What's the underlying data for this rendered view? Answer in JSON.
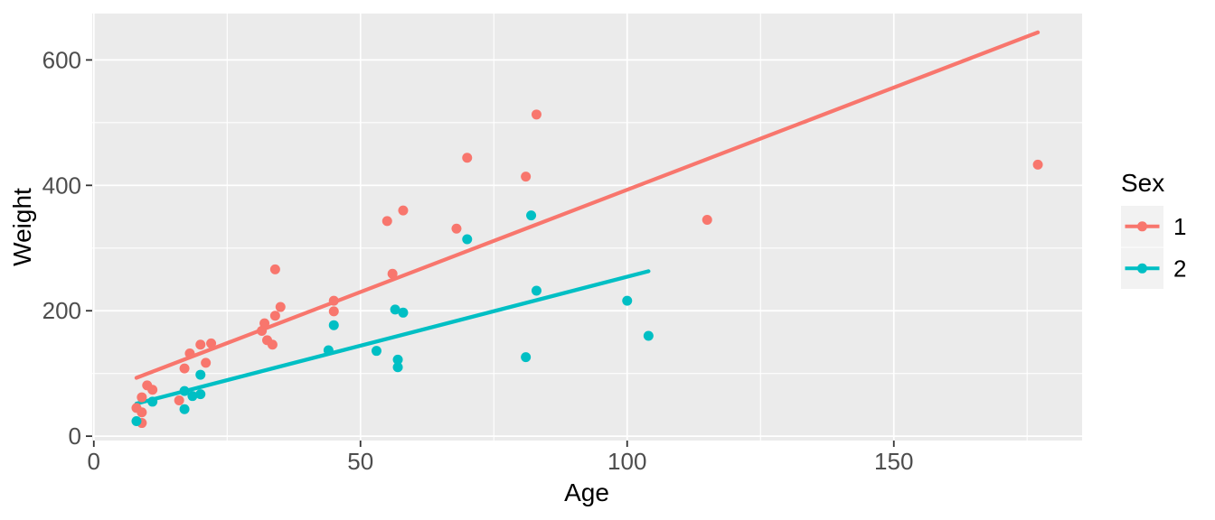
{
  "chart_data": {
    "type": "scatter",
    "title": "",
    "xlabel": "Age",
    "ylabel": "Weight",
    "x_ticks": [
      0,
      50,
      100,
      150
    ],
    "y_ticks": [
      0,
      200,
      400,
      600
    ],
    "x_minor_ticks": [
      25,
      75,
      125,
      175
    ],
    "y_minor_ticks": [
      100,
      300,
      500
    ],
    "xlim": [
      -0.3,
      185.3
    ],
    "ylim": [
      -7,
      674
    ],
    "grid": "on",
    "legend": {
      "title": "Sex",
      "position": "right"
    },
    "colors": {
      "background": "#FFFFFF",
      "panel_bg": "#EBEBEB",
      "grid": "#FFFFFF",
      "tick_mark": "#333333",
      "tick_label": "#4D4D4D",
      "axis_title": "#000000",
      "legend_key_bg": "#F2F2F2",
      "series1": "#F8766D",
      "series2": "#00BFC4"
    },
    "series": [
      {
        "name": "1",
        "color": "#F8766D",
        "points": [
          [
            8,
            45
          ],
          [
            9,
            62
          ],
          [
            9,
            38
          ],
          [
            9,
            21
          ],
          [
            10,
            81
          ],
          [
            11,
            74
          ],
          [
            16,
            57
          ],
          [
            17,
            108
          ],
          [
            18,
            132
          ],
          [
            20,
            146
          ],
          [
            21,
            117
          ],
          [
            22,
            148
          ],
          [
            31.5,
            168
          ],
          [
            32,
            180
          ],
          [
            32.5,
            153
          ],
          [
            33.5,
            146
          ],
          [
            34,
            266
          ],
          [
            34,
            192
          ],
          [
            35,
            206
          ],
          [
            45,
            199
          ],
          [
            45,
            216
          ],
          [
            55,
            343
          ],
          [
            56,
            259
          ],
          [
            58,
            360
          ],
          [
            68,
            331
          ],
          [
            70,
            444
          ],
          [
            81,
            414
          ],
          [
            83,
            513
          ],
          [
            115,
            345
          ],
          [
            177,
            433
          ]
        ],
        "trend_line": {
          "x1": 8,
          "y1": 93,
          "x2": 177,
          "y2": 644
        }
      },
      {
        "name": "2",
        "color": "#00BFC4",
        "points": [
          [
            8,
            24
          ],
          [
            11,
            55
          ],
          [
            17,
            72
          ],
          [
            17,
            43
          ],
          [
            18.5,
            64
          ],
          [
            20,
            98
          ],
          [
            20,
            67
          ],
          [
            44,
            137
          ],
          [
            45,
            177
          ],
          [
            53,
            136
          ],
          [
            56.5,
            202
          ],
          [
            58,
            197
          ],
          [
            57,
            122
          ],
          [
            57,
            110
          ],
          [
            70,
            314
          ],
          [
            81,
            126
          ],
          [
            82,
            352
          ],
          [
            83,
            232
          ],
          [
            100,
            216
          ],
          [
            104,
            160
          ]
        ],
        "trend_line": {
          "x1": 8,
          "y1": 52,
          "x2": 104,
          "y2": 263
        }
      }
    ]
  }
}
